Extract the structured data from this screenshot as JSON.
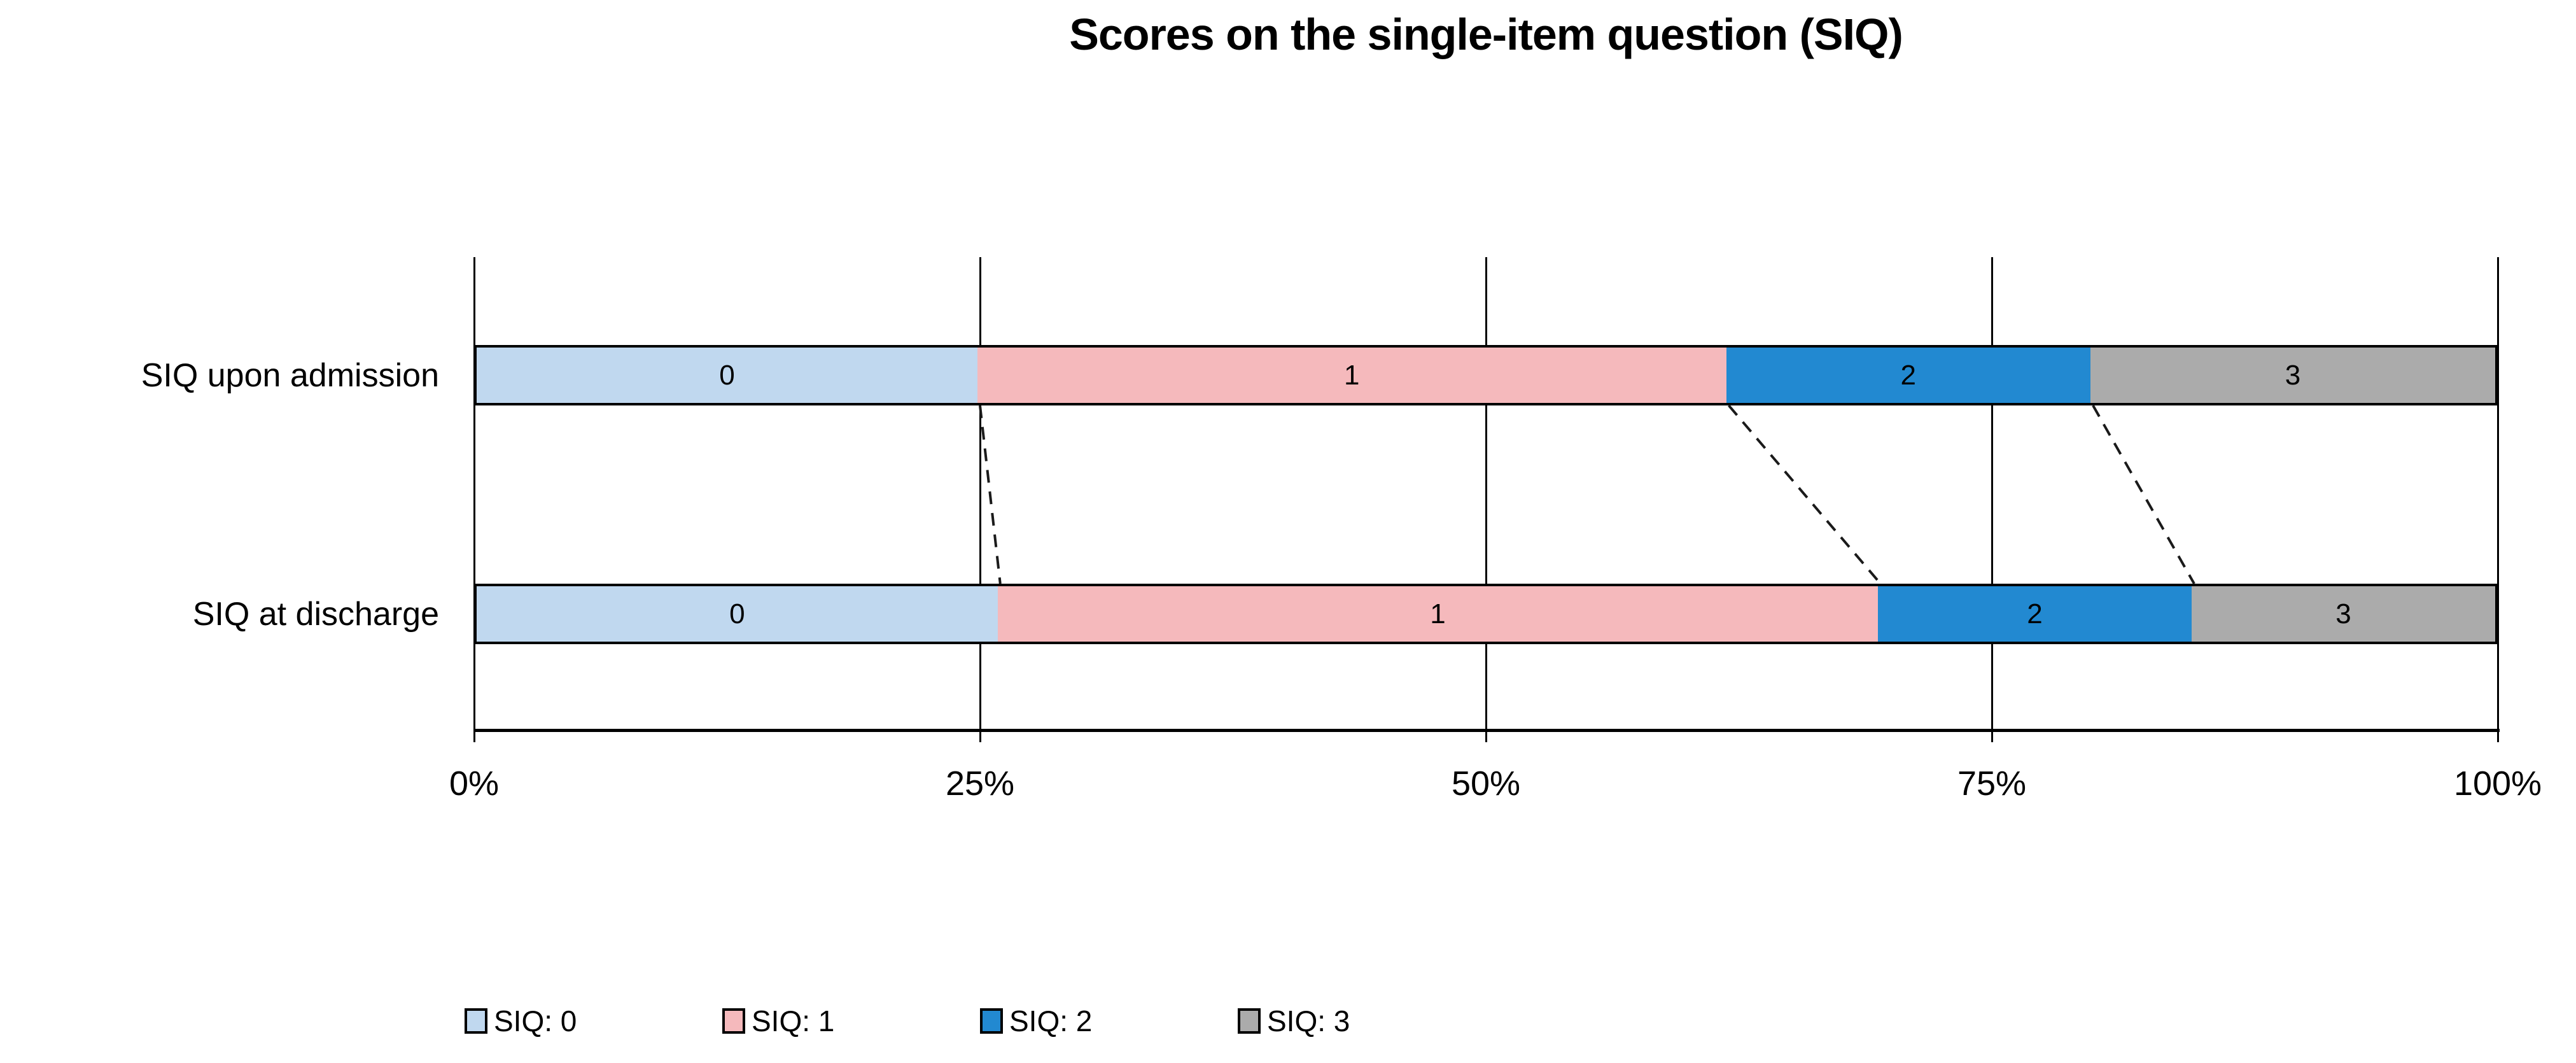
{
  "page": {
    "background": "#FFFFFF"
  },
  "chart_data": {
    "type": "bar",
    "variant": "100-percent-stacked-horizontal",
    "title": "Scores on the single-item question (SIQ)",
    "categories": [
      "SIQ upon admission",
      "SIQ at discharge"
    ],
    "series": [
      {
        "name": "SIQ: 0",
        "segment_label": "0",
        "color": "#C0D8EF",
        "values": [
          25,
          26
        ]
      },
      {
        "name": "SIQ: 1",
        "segment_label": "1",
        "color": "#F5B9BC",
        "values": [
          37,
          43.5
        ]
      },
      {
        "name": "SIQ: 2",
        "segment_label": "2",
        "color": "#2289D1",
        "values": [
          18,
          15.5
        ]
      },
      {
        "name": "SIQ: 3",
        "segment_label": "3",
        "color": "#ABABAB",
        "values": [
          20,
          15
        ]
      }
    ],
    "x_ticks": [
      {
        "value": 0,
        "label": "0%"
      },
      {
        "value": 25,
        "label": "25%"
      },
      {
        "value": 50,
        "label": "50%"
      },
      {
        "value": 75,
        "label": "75%"
      },
      {
        "value": 100,
        "label": "100%"
      }
    ],
    "xlim": [
      0,
      100
    ],
    "grid": "vertical-major",
    "legend_position": "bottom-left",
    "connectors": "dashed-lines-between-stack-boundaries",
    "axis_color": "#000000",
    "text_color": "#000000",
    "connector_color": "#1A1A1A"
  }
}
